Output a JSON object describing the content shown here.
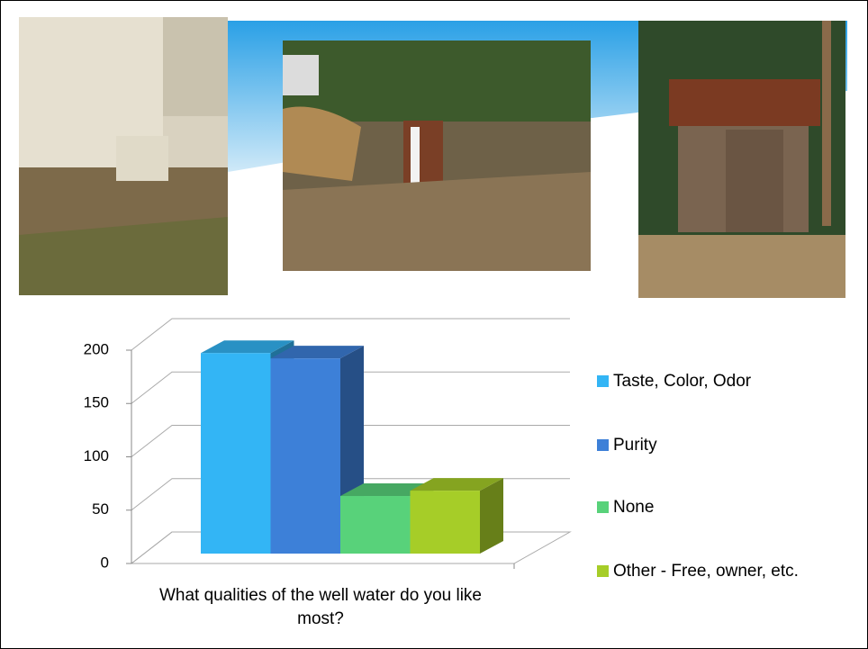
{
  "chart_data": {
    "type": "bar",
    "categories": [
      "What qualities of the well water do you like most?"
    ],
    "series": [
      {
        "name": "Taste, Color, Odor",
        "color": "#33b5f5",
        "values": [
          188
        ]
      },
      {
        "name": "Purity",
        "color": "#3d80d8",
        "values": [
          183
        ]
      },
      {
        "name": "None",
        "color": "#58d27a",
        "values": [
          54
        ]
      },
      {
        "name": "Other - Free, owner, etc.",
        "color": "#a6cd28",
        "values": [
          59
        ]
      }
    ],
    "ylim": [
      0,
      200
    ],
    "yticks": [
      0,
      50,
      100,
      150,
      200
    ],
    "grid": true
  }
}
